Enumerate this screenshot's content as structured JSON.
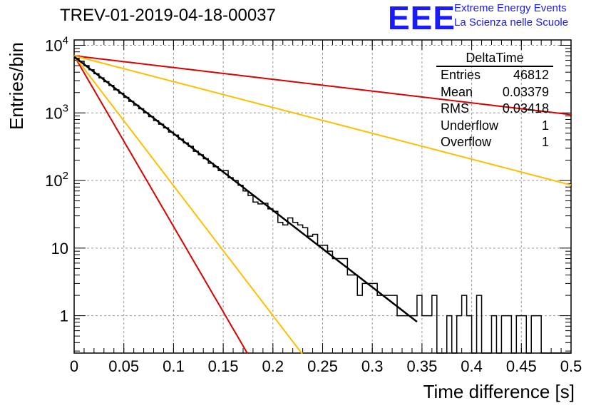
{
  "header": {
    "title": "TREV-01-2019-04-18-00037",
    "logo_mark": "EEE",
    "logo_line1": "Extreme Energy Events",
    "logo_line2": "La Scienza nelle Scuole"
  },
  "stats_box": {
    "title": "DeltaTime",
    "rows": [
      {
        "label": "Entries",
        "value": "46812"
      },
      {
        "label": "Mean",
        "value": "0.03379"
      },
      {
        "label": "RMS",
        "value": "0.03418"
      },
      {
        "label": "Underflow",
        "value": "1"
      },
      {
        "label": "Overflow",
        "value": "1"
      }
    ]
  },
  "chart_data": {
    "type": "line",
    "title": "TREV-01-2019-04-18-00037",
    "xlabel": "Time difference [s]",
    "ylabel": "Entries/bin",
    "xlim": [
      0,
      0.5
    ],
    "ylim": [
      0.28,
      12000
    ],
    "y_scale": "log",
    "grid": true,
    "x_ticks": [
      "0",
      "0.05",
      "0.1",
      "0.15",
      "0.2",
      "0.25",
      "0.3",
      "0.35",
      "0.4",
      "0.45",
      "0.5"
    ],
    "y_ticks": [
      {
        "value": 1,
        "label": "1"
      },
      {
        "value": 10,
        "label": "10"
      },
      {
        "value": 100,
        "label": "10^2"
      },
      {
        "value": 1000,
        "label": "10^3"
      },
      {
        "value": 10000,
        "label": "10^4"
      }
    ],
    "colors": {
      "histogram": "#000000",
      "fit": "#000000",
      "red": "#dd0000",
      "orange": "#ffbf00"
    },
    "histogram": {
      "bin_width": 0.005,
      "counts": [
        6400,
        5800,
        5000,
        4350,
        3800,
        3300,
        2900,
        2550,
        2200,
        1950,
        1700,
        1480,
        1300,
        1150,
        1000,
        880,
        770,
        680,
        600,
        520,
        470,
        410,
        360,
        320,
        270,
        240,
        210,
        180,
        160,
        140,
        140,
        110,
        100,
        85,
        70,
        60,
        48,
        45,
        46,
        38,
        35,
        24,
        22,
        28,
        24,
        22,
        20,
        15,
        16,
        11,
        11,
        9,
        7,
        7,
        7,
        4,
        4,
        2,
        3,
        3,
        3,
        2,
        2,
        2,
        2,
        1,
        1,
        1,
        1,
        2,
        1,
        1,
        2,
        0,
        0,
        1,
        0,
        1,
        2,
        1,
        0,
        2,
        0,
        0,
        1,
        0,
        1,
        1,
        0,
        1,
        1,
        0,
        1,
        1,
        0,
        0,
        0,
        0,
        0,
        0
      ]
    },
    "series": [
      {
        "type": "exponential",
        "color": "black",
        "A": 6800,
        "tau": 0.0382,
        "x_range": [
          0,
          0.345
        ]
      },
      {
        "type": "exponential",
        "color": "red",
        "A": 7000,
        "tau": 0.0172,
        "x_range": [
          0,
          0.5
        ]
      },
      {
        "type": "exponential",
        "color": "orange",
        "A": 7000,
        "tau": 0.0226,
        "x_range": [
          0,
          0.5
        ]
      },
      {
        "type": "exponential",
        "color": "red",
        "A": 7000,
        "tau": 0.2494,
        "x_range": [
          0,
          0.5
        ]
      },
      {
        "type": "exponential",
        "color": "orange",
        "A": 7000,
        "tau": 0.1136,
        "x_range": [
          0,
          0.5
        ]
      }
    ]
  }
}
